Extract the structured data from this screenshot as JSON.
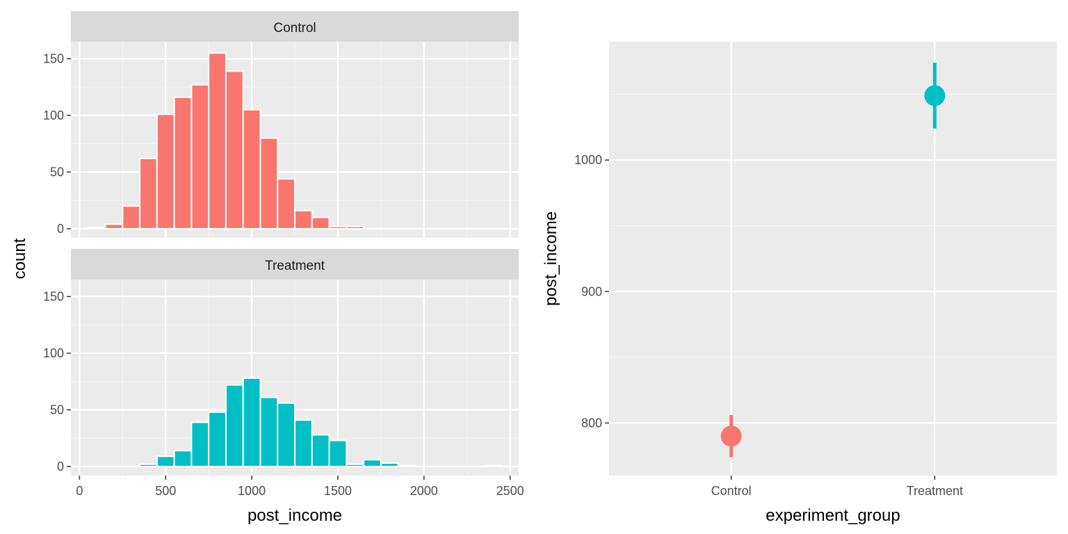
{
  "chart_data": [
    {
      "type": "bar",
      "subtype": "faceted-histogram",
      "xlabel": "post_income",
      "ylabel": "count",
      "xlim": [
        -50,
        2550
      ],
      "ylim": [
        -8,
        165
      ],
      "xticks": [
        0,
        500,
        1000,
        1500,
        2000,
        2500
      ],
      "yticks": [
        0,
        50,
        100,
        150
      ],
      "xtick_labels": [
        "0",
        "500",
        "1000",
        "1500",
        "2000",
        "2500"
      ],
      "ytick_labels": [
        "0",
        "50",
        "100",
        "150"
      ],
      "bin_width": 100,
      "grid": true,
      "facets": [
        {
          "name": "Control",
          "color": "#F8766D",
          "bin_starts": [
            50,
            150,
            250,
            350,
            450,
            550,
            650,
            750,
            850,
            950,
            1050,
            1150,
            1250,
            1350,
            1450,
            1550
          ],
          "values": [
            1,
            4,
            20,
            62,
            101,
            116,
            127,
            155,
            139,
            105,
            80,
            44,
            16,
            10,
            2,
            2
          ]
        },
        {
          "name": "Treatment",
          "color": "#00BFC4",
          "bin_starts": [
            350,
            450,
            550,
            650,
            750,
            850,
            950,
            1050,
            1150,
            1250,
            1350,
            1450,
            1550,
            1650,
            1750,
            1850,
            2350
          ],
          "values": [
            2,
            9,
            14,
            39,
            48,
            72,
            78,
            61,
            56,
            41,
            28,
            23,
            2,
            6,
            3,
            1,
            1
          ]
        }
      ]
    },
    {
      "type": "scatter",
      "subtype": "pointrange",
      "xlabel": "experiment_group",
      "ylabel": "post_income",
      "categories": [
        "Control",
        "Treatment"
      ],
      "ylim": [
        760,
        1090
      ],
      "yticks": [
        800,
        900,
        1000
      ],
      "ytick_labels": [
        "800",
        "900",
        "1000"
      ],
      "grid": true,
      "points": [
        {
          "category": "Control",
          "y": 790,
          "ymin": 774,
          "ymax": 806,
          "color": "#F8766D"
        },
        {
          "category": "Treatment",
          "y": 1049,
          "ymin": 1024,
          "ymax": 1074,
          "color": "#00BFC4"
        }
      ]
    }
  ]
}
